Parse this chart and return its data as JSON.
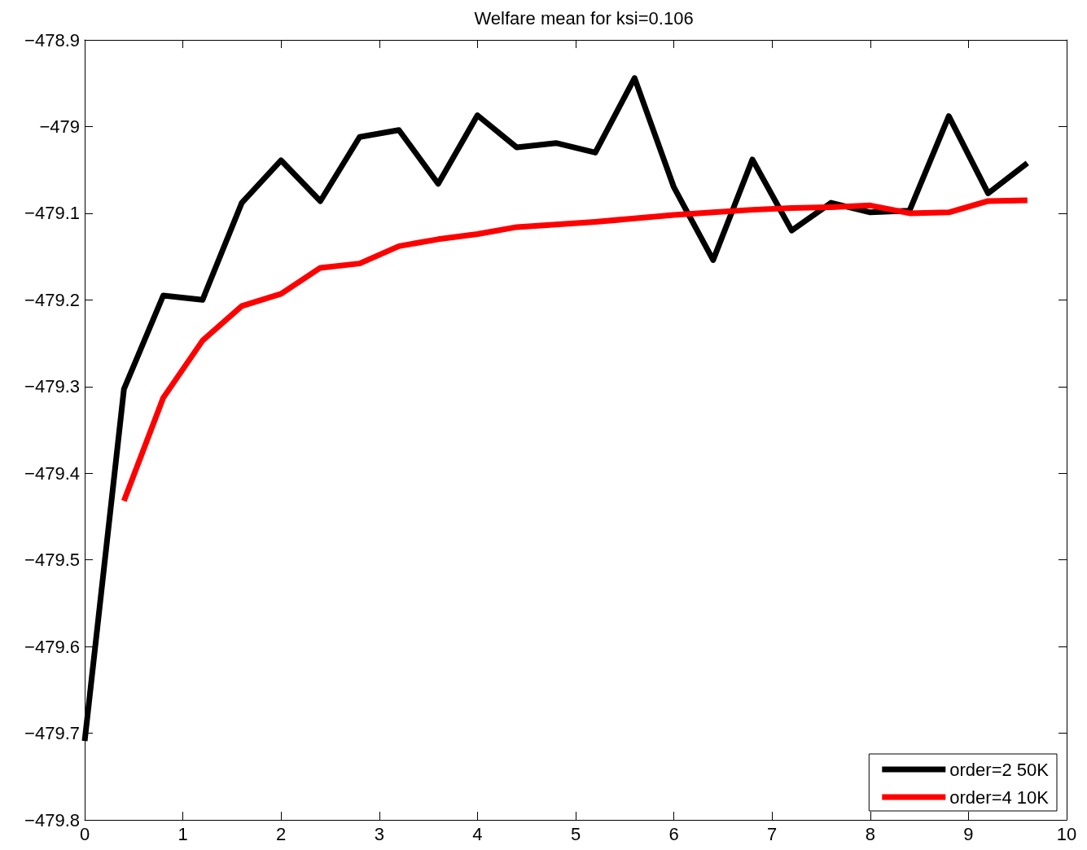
{
  "chart_data": {
    "type": "line",
    "title": "Welfare mean for ksi=0.106",
    "series": [
      {
        "name": "order=2 50K",
        "color": "#000000",
        "x": [
          0,
          0.4,
          0.8,
          1.2,
          1.6,
          2.0,
          2.4,
          2.8,
          3.2,
          3.6,
          4.0,
          4.4,
          4.8,
          5.2,
          5.6,
          6.0,
          6.4,
          6.8,
          7.2,
          7.6,
          8.0,
          8.4,
          8.8,
          9.2,
          9.6
        ],
        "values": [
          -479.709,
          -479.303,
          -479.195,
          -479.2,
          -479.088,
          -479.039,
          -479.086,
          -479.012,
          -479.004,
          -479.066,
          -478.987,
          -479.024,
          -479.019,
          -479.03,
          -478.944,
          -479.07,
          -479.154,
          -479.038,
          -479.12,
          -479.088,
          -479.099,
          -479.097,
          -478.988,
          -479.077,
          -479.042
        ]
      },
      {
        "name": "order=4 10K",
        "color": "#ff0000",
        "x": [
          0.4,
          0.8,
          1.2,
          1.6,
          2.0,
          2.4,
          2.8,
          3.2,
          3.6,
          4.0,
          4.4,
          4.8,
          5.2,
          5.6,
          6.0,
          6.4,
          6.8,
          7.2,
          7.6,
          8.0,
          8.4,
          8.8,
          9.2,
          9.6
        ],
        "values": [
          -479.432,
          -479.313,
          -479.247,
          -479.207,
          -479.193,
          -479.163,
          -479.158,
          -479.138,
          -479.13,
          -479.124,
          -479.116,
          -479.113,
          -479.11,
          -479.106,
          -479.102,
          -479.099,
          -479.096,
          -479.094,
          -479.093,
          -479.091,
          -479.1,
          -479.099,
          -479.086,
          -479.085
        ]
      }
    ],
    "xlim": [
      0,
      10
    ],
    "xticks": [
      0,
      1,
      2,
      3,
      4,
      5,
      6,
      7,
      8,
      9,
      10
    ],
    "ylim": [
      -479.8,
      -478.9
    ],
    "yticks": [
      {
        "value": -479.8,
        "label": "−479.8"
      },
      {
        "value": -479.7,
        "label": "−479.7"
      },
      {
        "value": -479.6,
        "label": "−479.6"
      },
      {
        "value": -479.5,
        "label": "−479.5"
      },
      {
        "value": -479.4,
        "label": "−479.4"
      },
      {
        "value": -479.3,
        "label": "−479.3"
      },
      {
        "value": -479.2,
        "label": "−479.2"
      },
      {
        "value": -479.1,
        "label": "−479.1"
      },
      {
        "value": -479,
        "label": "−479"
      },
      {
        "value": -478.9,
        "label": "−478.9"
      }
    ],
    "grid": false,
    "legend": "bottom right",
    "marker": "none",
    "line_style": "solid"
  }
}
